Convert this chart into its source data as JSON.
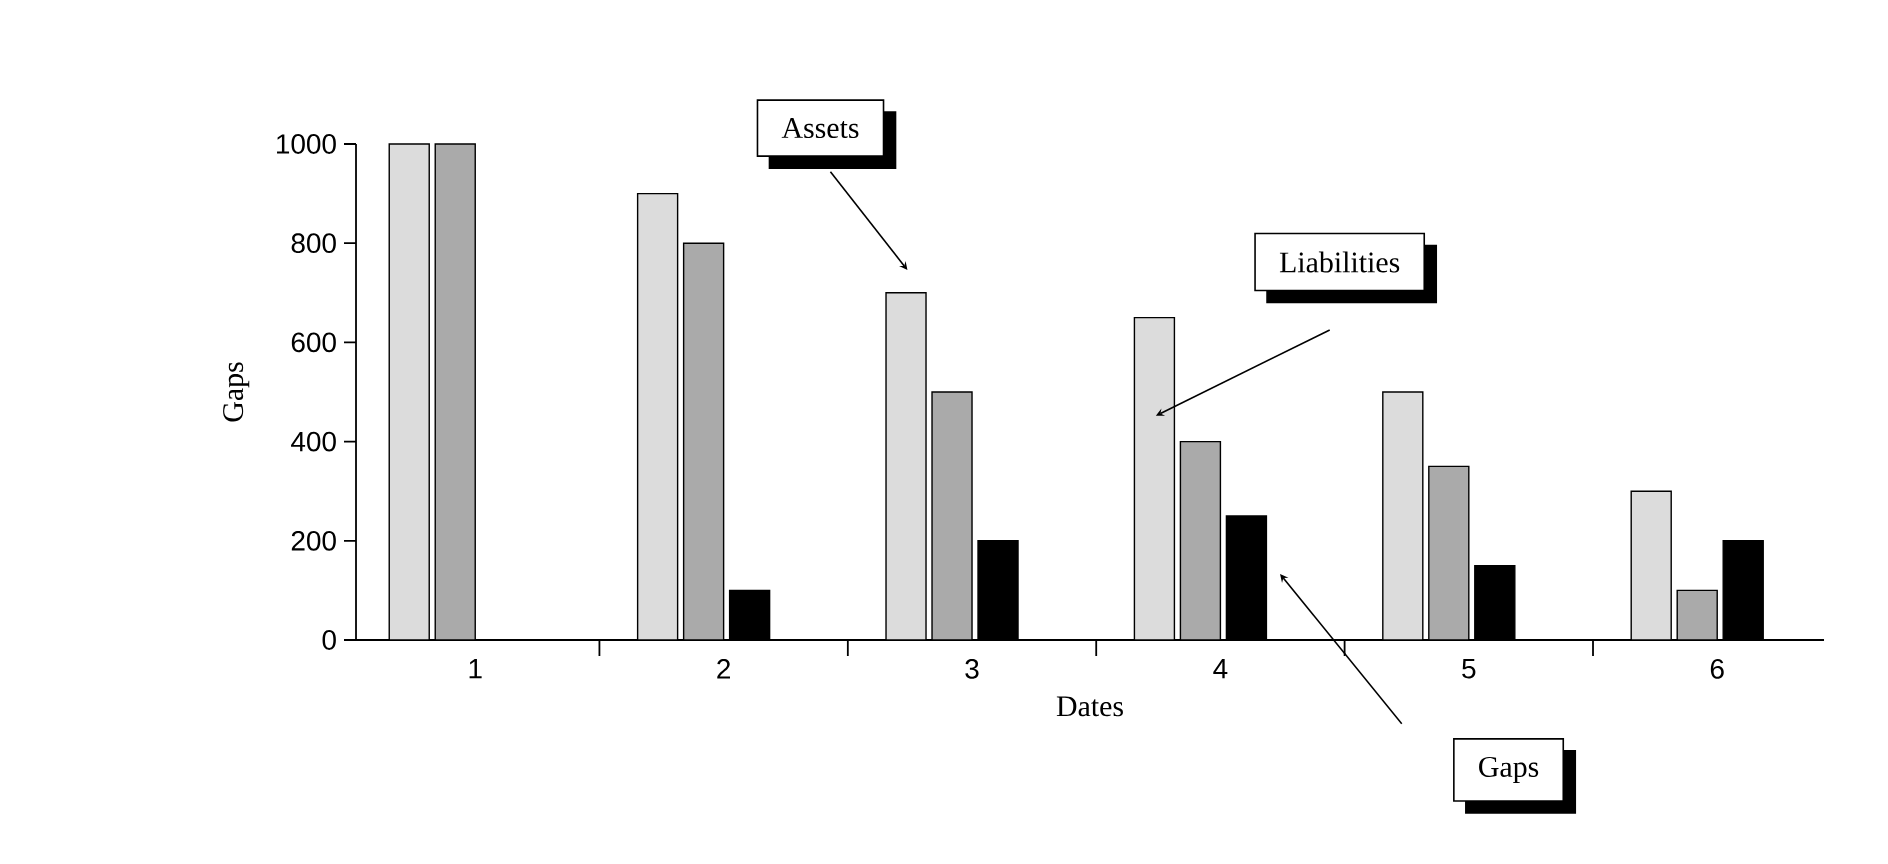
{
  "chart_data": {
    "type": "bar",
    "xlabel": "Dates",
    "ylabel": "Gaps",
    "categories": [
      "1",
      "2",
      "3",
      "4",
      "5",
      "6"
    ],
    "series": [
      {
        "name": "Assets",
        "color": "#dcdcdc",
        "values": [
          1000,
          900,
          700,
          650,
          500,
          300
        ]
      },
      {
        "name": "Liabilities",
        "color": "#aaaaaa",
        "values": [
          1000,
          800,
          500,
          400,
          350,
          100
        ]
      },
      {
        "name": "Gaps",
        "color": "#000000",
        "values": [
          0,
          100,
          200,
          250,
          150,
          200
        ]
      }
    ],
    "ylim": [
      0,
      1000
    ],
    "yticks": [
      0,
      200,
      400,
      600,
      800,
      1000
    ],
    "grid": false,
    "legend": false
  }
}
